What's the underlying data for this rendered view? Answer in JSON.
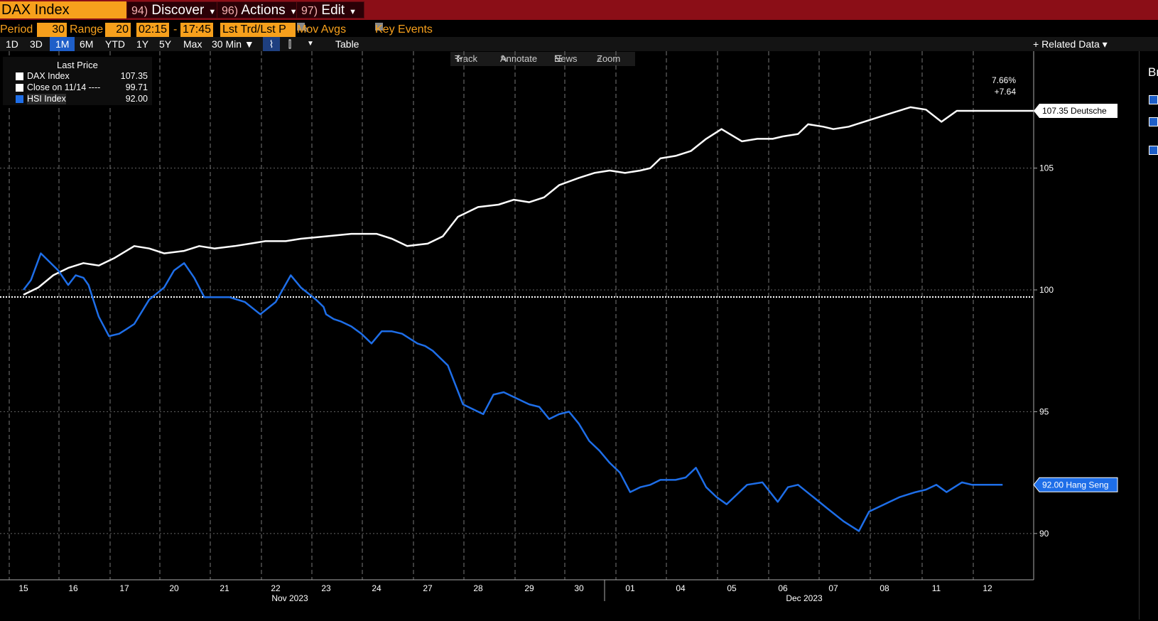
{
  "header": {
    "security": "DAX Index",
    "menus": [
      {
        "num": "94)",
        "label": "Discover"
      },
      {
        "num": "96)",
        "label": "Actions"
      },
      {
        "num": "97)",
        "label": "Edit"
      }
    ]
  },
  "controls": {
    "period_label": "Period",
    "period_value": "30",
    "range_label": "Range",
    "range_value": "20",
    "time_from": "02:15",
    "time_sep": "-",
    "time_to": "17:45",
    "price_type": "Lst Trd/Lst P",
    "mov_avgs": "Mov Avgs",
    "key_events": "Key Events"
  },
  "toolbar": {
    "ranges": [
      "1D",
      "3D",
      "1M",
      "6M",
      "YTD",
      "1Y",
      "5Y",
      "Max"
    ],
    "active_range": "1M",
    "interval": "30 Min ▼",
    "table": "Table",
    "related": "+ Related Data ▾"
  },
  "chart_tools": [
    "Track",
    "Annotate",
    "News",
    "Zoom"
  ],
  "legend": {
    "header": "Last Price",
    "rows": [
      {
        "label": "DAX Index",
        "value": "107.35",
        "color": "#ffffff"
      },
      {
        "label": "Close on 11/14 ----",
        "value": "99.71",
        "color": "#ffffff"
      },
      {
        "label": "HSI Index",
        "value": "92.00",
        "color": "#1e6ee8"
      }
    ]
  },
  "right_panel": {
    "title": "Br"
  },
  "annotations": {
    "pct": "7.66%",
    "chg": "+7.64",
    "dax_tag": "107.35 Deutsche",
    "hsi_tag": "92.00 Hang Seng"
  },
  "chart_data": {
    "type": "line",
    "y_ticks": [
      "105",
      "100",
      "95",
      "90"
    ],
    "ylim": [
      88.1,
      109.8
    ],
    "baseline": 99.71,
    "x_tick_labels": [
      "15",
      "16",
      "17",
      "20",
      "21",
      "22",
      "23",
      "24",
      "27",
      "28",
      "29",
      "30",
      "01",
      "04",
      "05",
      "06",
      "07",
      "08",
      "11",
      "12"
    ],
    "x_month_labels": [
      "Nov 2023",
      "Dec 2023"
    ],
    "x_index_range": [
      0,
      20.8
    ],
    "series": [
      {
        "name": "DAX Index",
        "color": "#ffffff",
        "x": [
          0,
          0.3,
          0.6,
          0.9,
          1.2,
          1.5,
          1.8,
          2.2,
          2.5,
          2.8,
          3.2,
          3.5,
          3.8,
          4.2,
          4.5,
          4.8,
          5.2,
          5.5,
          6.0,
          6.5,
          7.0,
          7.3,
          7.6,
          8.0,
          8.3,
          8.6,
          9.0,
          9.4,
          9.7,
          10.0,
          10.3,
          10.6,
          11.0,
          11.3,
          11.6,
          11.9,
          12.2,
          12.4,
          12.6,
          12.9,
          13.2,
          13.5,
          13.8,
          14.2,
          14.5,
          14.8,
          15.0,
          15.3,
          15.5,
          15.8,
          16.0,
          16.3,
          16.6,
          16.9,
          17.2,
          17.5,
          17.8,
          18.1,
          18.4,
          18.7,
          19.0,
          19.3,
          19.5,
          19.8,
          20.2,
          20.5
        ],
        "values": [
          99.8,
          100.1,
          100.6,
          100.9,
          101.1,
          101.0,
          101.3,
          101.8,
          101.7,
          101.5,
          101.6,
          101.8,
          101.7,
          101.8,
          101.9,
          102.0,
          102.0,
          102.1,
          102.2,
          102.3,
          102.3,
          102.1,
          101.8,
          101.9,
          102.2,
          103.0,
          103.4,
          103.5,
          103.7,
          103.6,
          103.8,
          104.3,
          104.6,
          104.8,
          104.9,
          104.8,
          104.9,
          105.0,
          105.4,
          105.5,
          105.7,
          106.2,
          106.6,
          106.1,
          106.2,
          106.2,
          106.3,
          106.4,
          106.8,
          106.7,
          106.6,
          106.7,
          106.9,
          107.1,
          107.3,
          107.5,
          107.4,
          106.9,
          107.35,
          107.35,
          107.35,
          107.35,
          107.35,
          107.35,
          107.35,
          107.35
        ],
        "label": "DAX Index"
      },
      {
        "name": "HSI Index",
        "color": "#1e6ee8",
        "x": [
          0,
          0.15,
          0.35,
          0.5,
          0.7,
          0.9,
          1.05,
          1.2,
          1.3,
          1.5,
          1.7,
          1.9,
          2.05,
          2.2,
          2.5,
          2.8,
          3.0,
          3.2,
          3.4,
          3.6,
          3.8,
          3.95,
          4.1,
          4.25,
          4.4,
          4.7,
          5.0,
          5.3,
          5.5,
          5.8,
          5.95,
          6.0,
          6.15,
          6.3,
          6.5,
          6.7,
          6.9,
          7.1,
          7.3,
          7.5,
          7.8,
          7.95,
          8.1,
          8.4,
          8.7,
          8.9,
          9.1,
          9.3,
          9.5,
          9.7,
          9.9,
          10.0,
          10.2,
          10.4,
          10.6,
          10.8,
          11.0,
          11.2,
          11.4,
          11.6,
          11.8,
          12.0,
          12.2,
          12.4,
          12.6,
          12.9,
          13.1,
          13.3,
          13.5,
          13.7,
          13.9,
          14.1,
          14.3,
          14.6,
          14.9,
          15.1,
          15.3,
          15.6,
          15.9,
          16.2,
          16.5,
          16.7,
          16.9,
          17.1,
          17.3,
          17.6,
          17.8,
          18.0,
          18.2,
          18.5,
          18.7,
          18.9,
          19.1,
          19.25,
          19.3
        ],
        "values": [
          100.0,
          100.4,
          101.5,
          101.2,
          100.8,
          100.2,
          100.6,
          100.5,
          100.2,
          98.9,
          98.1,
          98.2,
          98.4,
          98.6,
          99.6,
          100.1,
          100.8,
          101.1,
          100.5,
          99.7,
          99.7,
          99.7,
          99.7,
          99.6,
          99.5,
          99.0,
          99.5,
          100.6,
          100.1,
          99.6,
          99.3,
          99.0,
          98.8,
          98.7,
          98.5,
          98.2,
          97.8,
          98.3,
          98.3,
          98.2,
          97.8,
          97.7,
          97.5,
          96.9,
          95.3,
          95.1,
          94.9,
          95.7,
          95.8,
          95.6,
          95.4,
          95.3,
          95.2,
          94.7,
          94.9,
          95.0,
          94.5,
          93.8,
          93.4,
          92.9,
          92.5,
          91.7,
          91.9,
          92.0,
          92.2,
          92.2,
          92.3,
          92.7,
          91.9,
          91.5,
          91.2,
          91.6,
          92.0,
          92.1,
          91.3,
          91.9,
          92.0,
          91.5,
          91.0,
          90.5,
          90.1,
          90.9,
          91.1,
          91.3,
          91.5,
          91.7,
          91.8,
          92.0,
          91.7,
          92.1,
          92.0,
          92.0,
          92.0,
          92.0,
          92.0
        ],
        "label": "HSI Index"
      }
    ]
  }
}
